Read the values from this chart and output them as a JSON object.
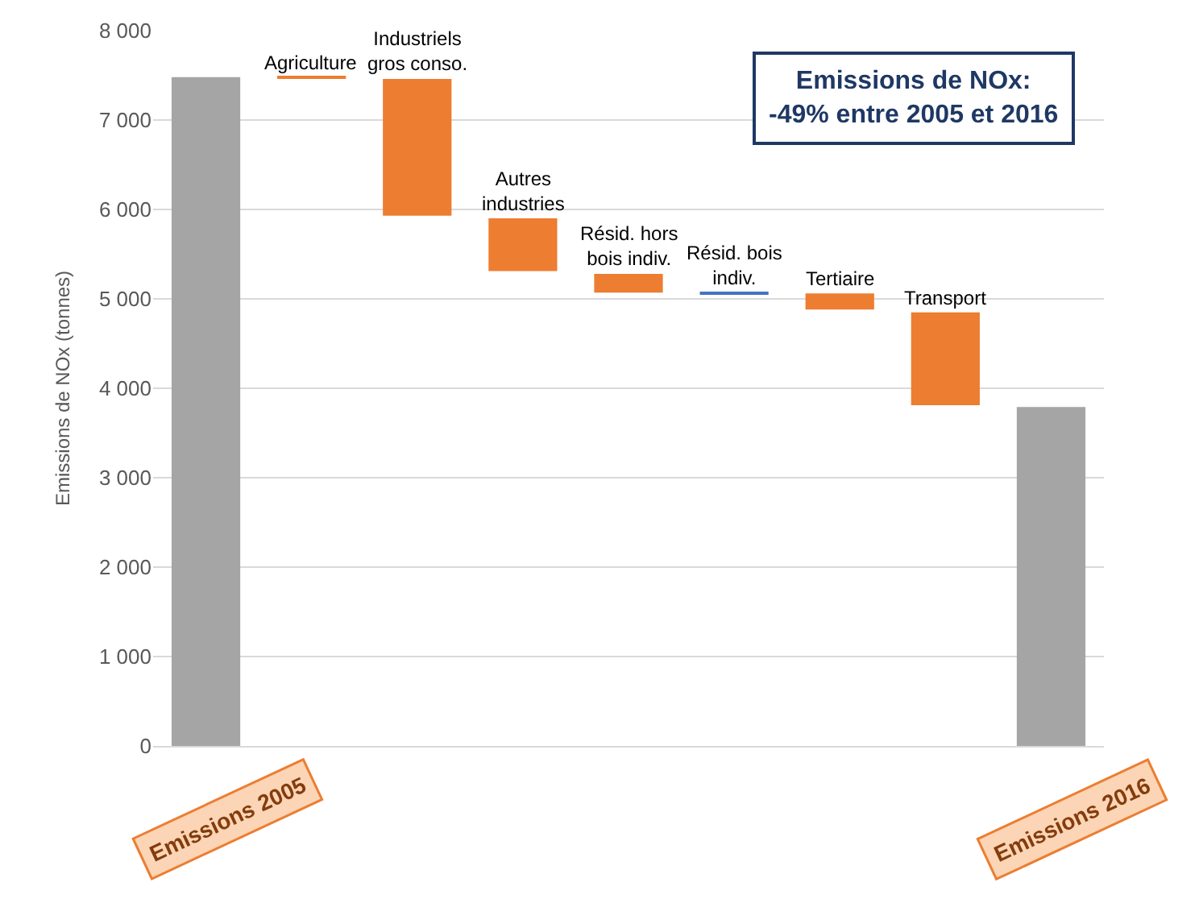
{
  "chart_data": {
    "type": "bar",
    "ylabel": "Emissions de NOx (tonnes)",
    "categories": [
      "Emissions 2005",
      "Agriculture",
      "Industriels gros conso.",
      "Autres industries",
      "Résid. hors bois indiv.",
      "Résid. bois indiv.",
      "Tertiaire",
      "Transport",
      "Emissions 2016"
    ],
    "values": [
      7480,
      -20,
      -1530,
      -590,
      -210,
      10,
      -180,
      -1040,
      3790
    ],
    "base": [
      0,
      7480,
      7460,
      5900,
      5280,
      5060,
      5060,
      4850,
      0
    ],
    "colors": [
      "#a5a5a5",
      "#ed7d31",
      "#ed7d31",
      "#ed7d31",
      "#ed7d31",
      "#4472c4",
      "#ed7d31",
      "#ed7d31",
      "#a5a5a5"
    ],
    "ylim": [
      0,
      8000
    ],
    "yticks": [
      0,
      {
        "value": 1000,
        "label": "1 000"
      },
      {
        "value": 2000,
        "label": "2 000"
      },
      {
        "value": 3000,
        "label": "3 000"
      },
      {
        "value": 4000,
        "label": "4 000"
      },
      {
        "value": 5000,
        "label": "5 000"
      },
      {
        "value": 6000,
        "label": "6 000"
      },
      {
        "value": 7000,
        "label": "7 000"
      },
      {
        "value": 8000,
        "label": "8 000"
      }
    ],
    "grid": "y",
    "annotations": [
      "Emissions de NOx:\n-49% entre 2005 et 2016"
    ]
  }
}
